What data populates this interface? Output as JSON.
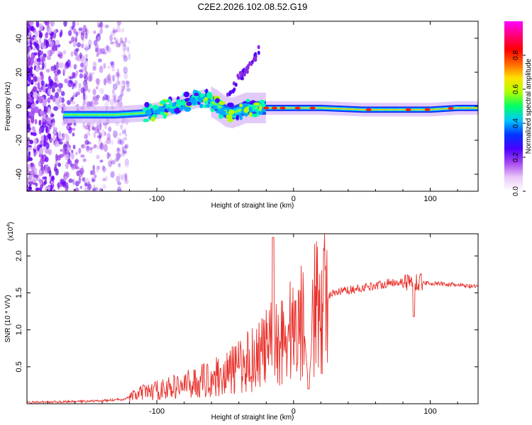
{
  "title": "C2E2.2026.102.08.52.G19",
  "chart_data": [
    {
      "type": "heatmap",
      "name": "spectrogram",
      "xlabel": "Height of straight line (km)",
      "ylabel": "Frequency (Hz)",
      "xlim": [
        -195,
        135
      ],
      "ylim": [
        -50,
        50
      ],
      "xticks": [
        -100,
        0,
        100
      ],
      "yticks": [
        -40,
        -20,
        0,
        20,
        40
      ],
      "colorbar": {
        "label": "Normalized spectral amplitude",
        "range": [
          0,
          1
        ],
        "ticks": [
          0,
          0.2,
          0.4,
          0.6,
          0.8
        ],
        "tick_labels": [
          "0.0",
          "0.2",
          "0.4",
          "0.6",
          "0.8"
        ],
        "colors": [
          "#ffffff",
          "#e9c7f7",
          "#a447f0",
          "#4a00ff",
          "#0035ff",
          "#00c7ff",
          "#00ff64",
          "#b0ff00",
          "#ffe000",
          "#ff6400",
          "#ff0000",
          "#ff0078",
          "#ff00ff"
        ]
      },
      "ridge": [
        [
          -170,
          -5
        ],
        [
          -150,
          -5
        ],
        [
          -130,
          -5
        ],
        [
          -110,
          -4
        ],
        [
          -95,
          -2
        ],
        [
          -80,
          2
        ],
        [
          -65,
          5
        ],
        [
          -55,
          0
        ],
        [
          -50,
          -3
        ],
        [
          -45,
          -4
        ],
        [
          -35,
          -1
        ],
        [
          -20,
          -1
        ],
        [
          0,
          -1
        ],
        [
          20,
          -1
        ],
        [
          50,
          -2
        ],
        [
          80,
          -2
        ],
        [
          100,
          -2
        ],
        [
          120,
          -1
        ],
        [
          135,
          -1
        ]
      ]
    },
    {
      "type": "line",
      "name": "snr",
      "xlabel": "Height of straight line (km)",
      "ylabel": "SNR (10 * V/V)",
      "yscale_label": "(x10",
      "yscale_exp": "4",
      "xlim": [
        -195,
        135
      ],
      "ylim": [
        0,
        2.3
      ],
      "xticks": [
        -100,
        0,
        100
      ],
      "yticks": [
        0.5,
        1.0,
        1.5,
        2.0
      ],
      "ytick_labels": [
        "0.5",
        "1.0",
        "1.5",
        "2.0"
      ],
      "color": "#e8302a",
      "envelope": [
        [
          -195,
          0.02
        ],
        [
          -160,
          0.03
        ],
        [
          -140,
          0.04
        ],
        [
          -125,
          0.06
        ],
        [
          -110,
          0.15
        ],
        [
          -95,
          0.2
        ],
        [
          -80,
          0.25
        ],
        [
          -65,
          0.32
        ],
        [
          -50,
          0.4
        ],
        [
          -40,
          0.5
        ],
        [
          -30,
          0.62
        ],
        [
          -20,
          0.75
        ],
        [
          -12,
          0.85
        ],
        [
          -5,
          0.95
        ],
        [
          5,
          1.1
        ],
        [
          15,
          1.25
        ],
        [
          25,
          1.45
        ],
        [
          35,
          1.52
        ],
        [
          45,
          1.55
        ],
        [
          60,
          1.6
        ],
        [
          75,
          1.65
        ],
        [
          90,
          1.65
        ],
        [
          100,
          1.63
        ],
        [
          110,
          1.62
        ],
        [
          135,
          1.58
        ]
      ],
      "spikes": [
        {
          "x": -15,
          "y": 2.25
        },
        {
          "x": 9,
          "y": 2.12
        },
        {
          "x": 88,
          "y": 1.18
        },
        {
          "x": 11,
          "y": 0.2
        }
      ]
    }
  ]
}
